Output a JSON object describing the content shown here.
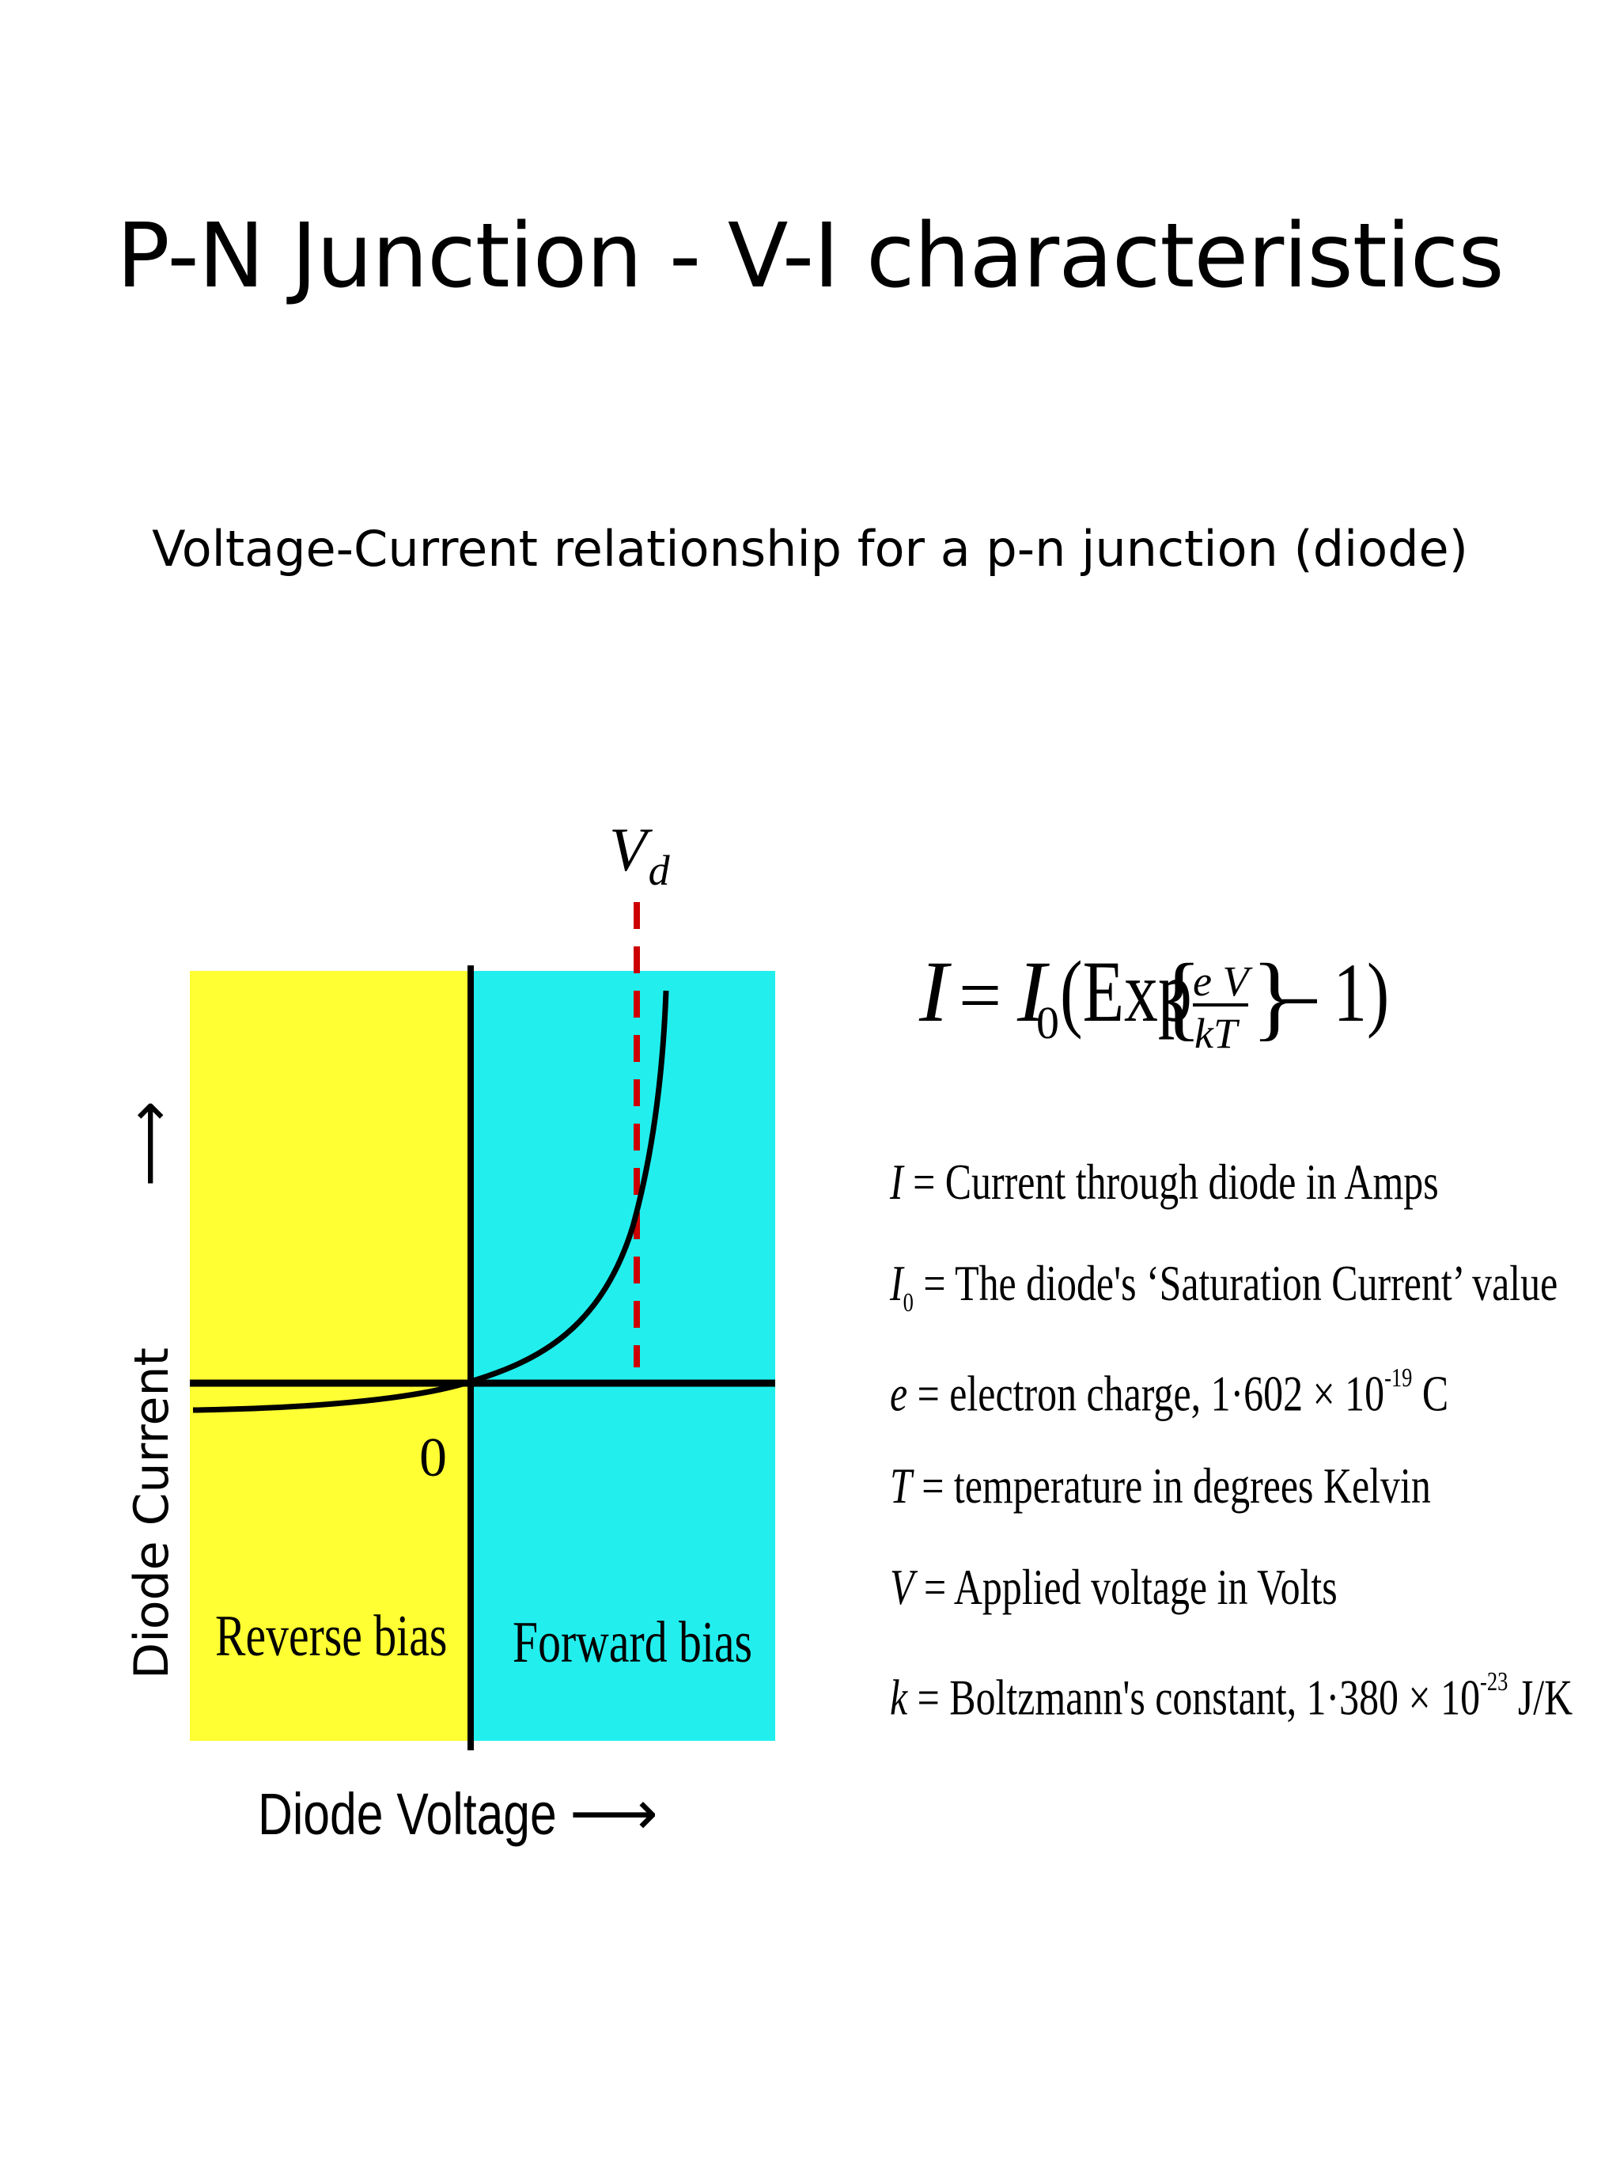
{
  "title": "P-N Junction - V-I characteristics",
  "subtitle": "Voltage-Current relationship for a p-n junction (diode)",
  "diagram": {
    "vd_label": "V",
    "vd_sub": "d",
    "origin_label": "0",
    "reverse_label": "Reverse bias",
    "forward_label": "Forward bias",
    "y_axis_label": "Diode Current",
    "x_axis_label": "Diode Voltage",
    "arrow_right": "⟶",
    "arrow_up": "⟶",
    "colors": {
      "reverse": "#ffff33",
      "forward": "#22eeee",
      "marker": "#cc0000"
    }
  },
  "formula": {
    "lhs": "I",
    "eq": "=",
    "i0": "I",
    "i0_sub": "0",
    "exp": "(Exp",
    "num": "e V",
    "den": "kT",
    "tail": "– 1)"
  },
  "variables": [
    {
      "sym": "I",
      "text": " = Current through diode in Amps"
    },
    {
      "sym": "I",
      "sub": "0",
      "text": " = The diode's ‘Saturation Current’ value"
    },
    {
      "sym": "e",
      "text": " = electron charge, 1·602 × 10",
      "sup": "-19",
      "tail": " C"
    },
    {
      "sym": "T",
      "text": " = temperature in degrees Kelvin"
    },
    {
      "sym": "V",
      "text": " = Applied voltage in Volts"
    },
    {
      "sym": "k",
      "text": " = Boltzmann's constant, 1·380 × 10",
      "sup": "-23",
      "tail": " J/K"
    }
  ]
}
